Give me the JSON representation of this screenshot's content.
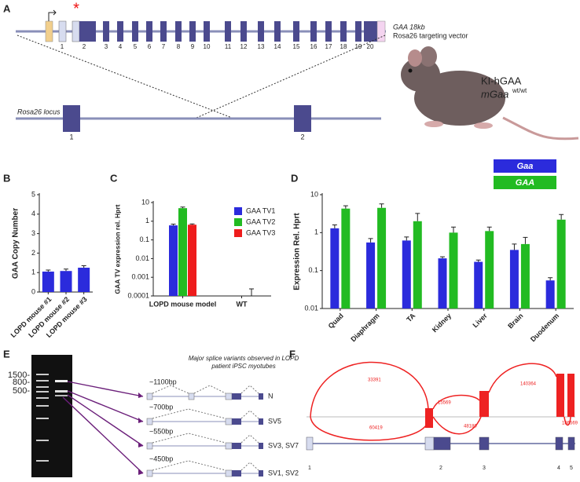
{
  "panels": [
    "A",
    "B",
    "C",
    "D",
    "E",
    "F"
  ],
  "A": {
    "asterisk": "*",
    "gene_label": "GAA 18kb",
    "vector_label": "Rosa26 targeting vector",
    "exon_labels": [
      "1",
      "2",
      "3",
      "4",
      "5",
      "6",
      "7",
      "8",
      "9",
      "10",
      "11",
      "12",
      "13",
      "14",
      "15",
      "16",
      "17",
      "18",
      "19",
      "20"
    ],
    "locus_label": "Rosa26 locus",
    "locus_exon_labels": [
      "1",
      "2"
    ],
    "mouse_label_1": "KI-hGAA",
    "mouse_label_2": "mGaa",
    "mouse_superscript": "wt/wt"
  },
  "chart_data": [
    {
      "type": "bar",
      "ylabel": "GAA Copy Number",
      "categories": [
        "LOPD mouse #1",
        "LOPD mouse #2",
        "LOPD mouse #3"
      ],
      "values": [
        1.05,
        1.08,
        1.25
      ],
      "errors": [
        0.08,
        0.1,
        0.1
      ],
      "color": "#2b2bdc",
      "ylim": [
        0,
        5
      ],
      "yticks": [
        0,
        1,
        2,
        3,
        4,
        5
      ]
    },
    {
      "type": "bar",
      "ylabel": "GAA TV expression rel. Hprt",
      "log_scale": true,
      "categories": [
        "LOPD mouse model",
        "WT"
      ],
      "series": [
        {
          "name": "GAA TV1",
          "color": "#2b2bdc",
          "values": [
            0.6,
            null
          ],
          "errors": [
            0.1,
            null
          ]
        },
        {
          "name": "GAA TV2",
          "color": "#22bb22",
          "values": [
            5,
            null
          ],
          "errors": [
            0.7,
            null
          ]
        },
        {
          "name": "GAA TV3",
          "color": "#ee1c1c",
          "values": [
            0.65,
            null
          ],
          "errors": [
            0.07,
            null
          ]
        }
      ],
      "ylim": [
        0.0001,
        10
      ],
      "yticks": [
        0.0001,
        0.001,
        0.01,
        0.1,
        1,
        10
      ]
    },
    {
      "type": "bar",
      "ylabel": "Expression Rel. Hprt",
      "log_scale": true,
      "categories": [
        "Quad",
        "Diaphragm",
        "TA",
        "Kidney",
        "Liver",
        "Brain",
        "Duodenum"
      ],
      "series": [
        {
          "name": "Gaa",
          "color": "#2b2bdc",
          "values": [
            1.3,
            0.55,
            0.62,
            0.21,
            0.17,
            0.35,
            0.055
          ],
          "errors": [
            0.3,
            0.15,
            0.15,
            0.02,
            0.02,
            0.15,
            0.01
          ]
        },
        {
          "name": "GAA",
          "color": "#22bb22",
          "values": [
            4.3,
            4.5,
            2.0,
            1.0,
            1.1,
            0.5,
            2.2
          ],
          "errors": [
            0.8,
            1.2,
            1.2,
            0.4,
            0.3,
            0.25,
            0.8
          ]
        }
      ],
      "ylim": [
        0.01,
        10
      ],
      "yticks": [
        0.01,
        0.1,
        1,
        10
      ]
    }
  ],
  "E": {
    "ladder": [
      "1500-",
      "800-",
      "500-"
    ],
    "title": [
      "Major splice variants observed in LOPD",
      "patient iPSC myotubes"
    ],
    "variants": [
      {
        "size": "~1100bp",
        "name": "N"
      },
      {
        "size": "~700bp",
        "name": "SV5"
      },
      {
        "size": "~550bp",
        "name": "SV3, SV7"
      },
      {
        "size": "~450bp",
        "name": "SV1, SV2"
      }
    ]
  },
  "F": {
    "junction_counts": [
      "33391",
      "15569",
      "140364",
      "60419",
      "48180",
      "186569"
    ],
    "exon_labels": [
      "1",
      "2",
      "3",
      "4",
      "5"
    ]
  }
}
